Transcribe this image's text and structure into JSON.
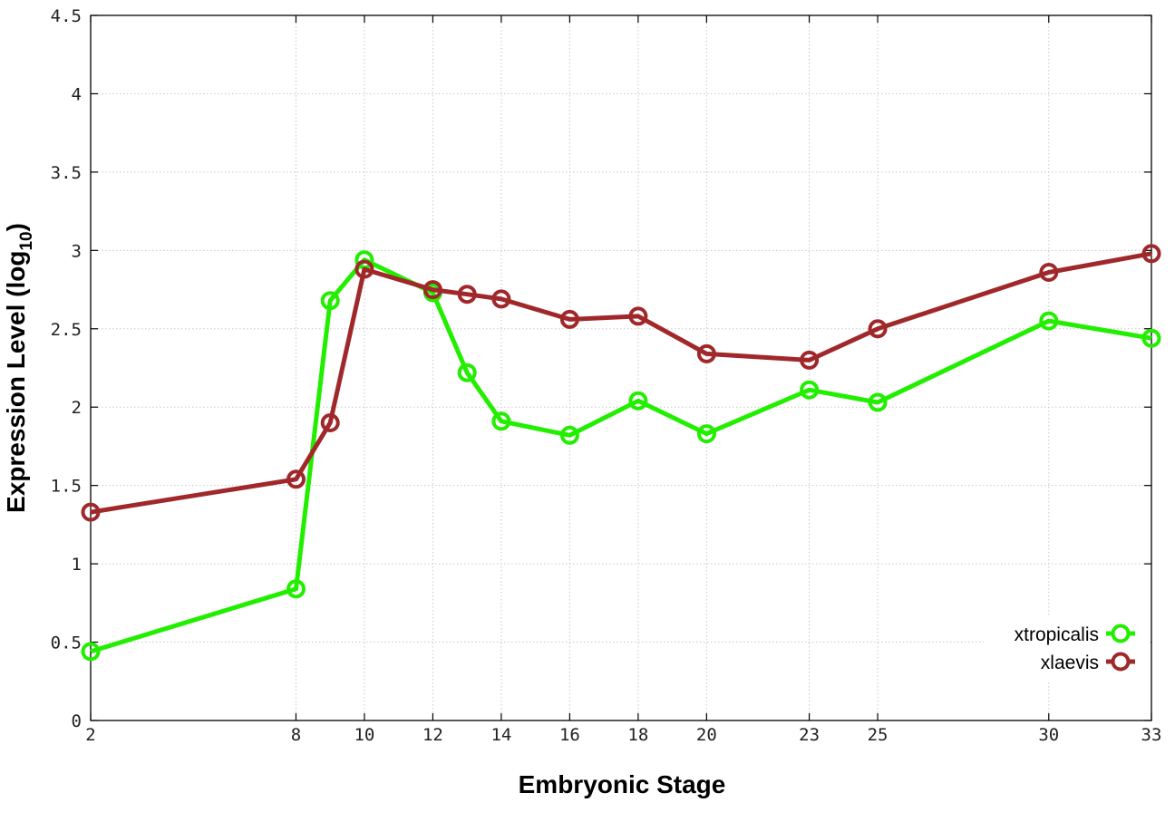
{
  "chart_data": {
    "type": "line",
    "xlabel": "Embryonic Stage",
    "ylabel": "Expression Level (log",
    "ylabel_sub": "10",
    "ylabel_close": ")",
    "x": [
      2,
      8,
      9,
      10,
      12,
      13,
      14,
      16,
      18,
      20,
      23,
      25,
      30,
      33
    ],
    "x_ticks": [
      "2",
      "8",
      "10",
      "12",
      "14",
      "16",
      "18",
      "20",
      "23",
      "25",
      "30",
      "33"
    ],
    "x_tick_values": [
      2,
      8,
      10,
      12,
      14,
      16,
      18,
      20,
      23,
      25,
      30,
      33
    ],
    "xlim": [
      2,
      33
    ],
    "ylim": [
      0,
      4.5
    ],
    "y_ticks": [
      "0",
      "0.5",
      "1",
      "1.5",
      "2",
      "2.5",
      "3",
      "3.5",
      "4",
      "4.5"
    ],
    "y_tick_values": [
      0,
      0.5,
      1,
      1.5,
      2,
      2.5,
      3,
      3.5,
      4,
      4.5
    ],
    "grid": true,
    "legend_position": "bottom-right",
    "series": [
      {
        "name": "xtropicalis",
        "color": "#22ee00",
        "values": [
          0.44,
          0.84,
          2.68,
          2.94,
          2.73,
          2.22,
          1.91,
          1.82,
          2.04,
          1.83,
          2.11,
          2.03,
          2.55,
          2.44
        ]
      },
      {
        "name": "xlaevis",
        "color": "#a0282a",
        "values": [
          1.33,
          1.54,
          1.9,
          2.88,
          2.75,
          2.72,
          2.69,
          2.56,
          2.58,
          2.34,
          2.3,
          2.5,
          2.86,
          2.98
        ]
      }
    ]
  }
}
